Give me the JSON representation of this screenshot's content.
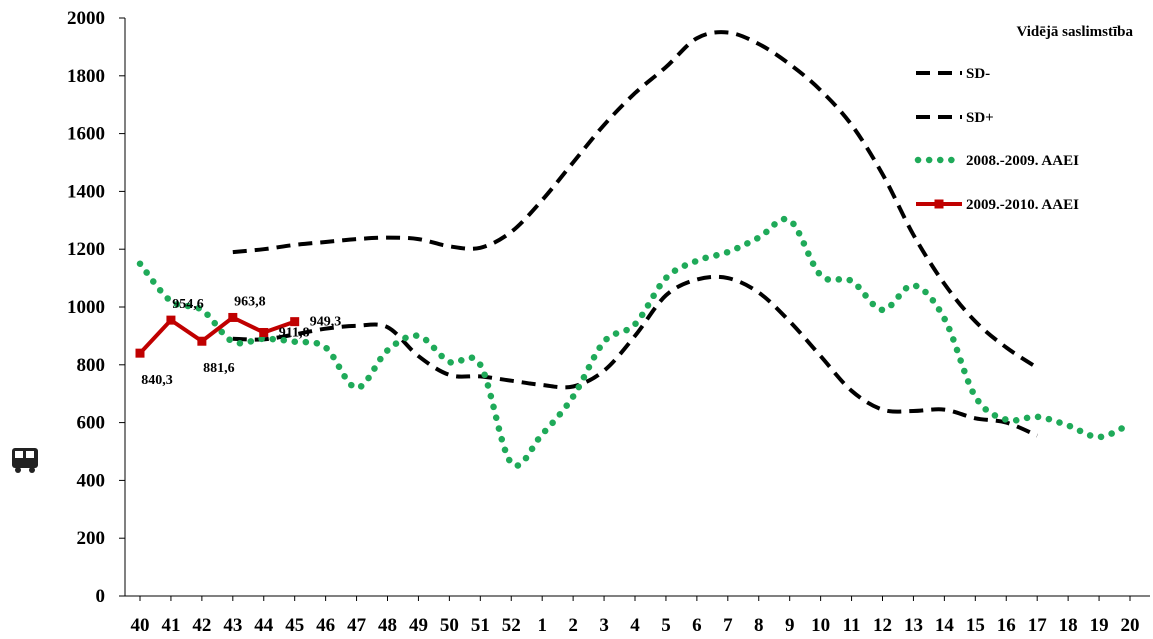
{
  "chart_data": {
    "type": "line",
    "title": "",
    "xlabel": "",
    "ylabel": "",
    "categories": [
      "40",
      "41",
      "42",
      "43",
      "44",
      "45",
      "46",
      "47",
      "48",
      "49",
      "50",
      "51",
      "52",
      "1",
      "2",
      "3",
      "4",
      "5",
      "6",
      "7",
      "8",
      "9",
      "10",
      "11",
      "12",
      "13",
      "14",
      "15",
      "16",
      "17",
      "18",
      "19",
      "20"
    ],
    "ylim": [
      0,
      2000
    ],
    "yticks": [
      "0",
      "200",
      "400",
      "600",
      "800",
      "1000",
      "1200",
      "1400",
      "1600",
      "1800",
      "2000"
    ],
    "legend": {
      "title": "Vidējā saslimstība",
      "position": "top-right"
    },
    "series": [
      {
        "name": "SD-",
        "style": "dashed",
        "color": "#000000",
        "values": [
          null,
          null,
          null,
          890,
          888,
          905,
          925,
          935,
          930,
          830,
          765,
          760,
          745,
          730,
          725,
          780,
          900,
          1040,
          1095,
          1100,
          1050,
          950,
          830,
          710,
          645,
          640,
          645,
          615,
          600,
          555,
          null,
          null,
          null
        ]
      },
      {
        "name": "SD+",
        "style": "dashed",
        "color": "#000000",
        "values": [
          null,
          null,
          null,
          1190,
          1200,
          1215,
          1225,
          1235,
          1240,
          1235,
          1210,
          1205,
          1260,
          1370,
          1500,
          1630,
          1740,
          1830,
          1930,
          1950,
          1910,
          1840,
          1750,
          1630,
          1460,
          1250,
          1080,
          950,
          860,
          790,
          null,
          null,
          null
        ]
      },
      {
        "name": "2008.-2009. AAEI",
        "style": "dotted",
        "color": "#1faa59",
        "values": [
          1150,
          1020,
          990,
          880,
          890,
          880,
          860,
          720,
          850,
          900,
          810,
          800,
          460,
          560,
          690,
          880,
          940,
          1100,
          1160,
          1190,
          1240,
          1300,
          1110,
          1090,
          990,
          1075,
          960,
          690,
          610,
          620,
          590,
          550,
          595
        ]
      },
      {
        "name": "2009.-2010. AAEI",
        "style": "solid",
        "color": "#c00000",
        "values": [
          840.3,
          954.6,
          881.6,
          963.8,
          911.8,
          949.3,
          null,
          null,
          null,
          null,
          null,
          null,
          null,
          null,
          null,
          null,
          null,
          null,
          null,
          null,
          null,
          null,
          null,
          null,
          null,
          null,
          null,
          null,
          null,
          null,
          null,
          null,
          null
        ]
      }
    ],
    "data_labels": [
      {
        "text": "840,3",
        "index": 0,
        "value": 840.3,
        "pos": "below"
      },
      {
        "text": "954,6",
        "index": 1,
        "value": 954.6,
        "pos": "above"
      },
      {
        "text": "881,6",
        "index": 2,
        "value": 881.6,
        "pos": "below"
      },
      {
        "text": "963,8",
        "index": 3,
        "value": 963.8,
        "pos": "above"
      },
      {
        "text": "911,8",
        "index": 4,
        "value": 911.8,
        "pos": "right"
      },
      {
        "text": "949,3",
        "index": 5,
        "value": 949.3,
        "pos": "right"
      }
    ],
    "y_axis_icon": "bus-icon"
  }
}
